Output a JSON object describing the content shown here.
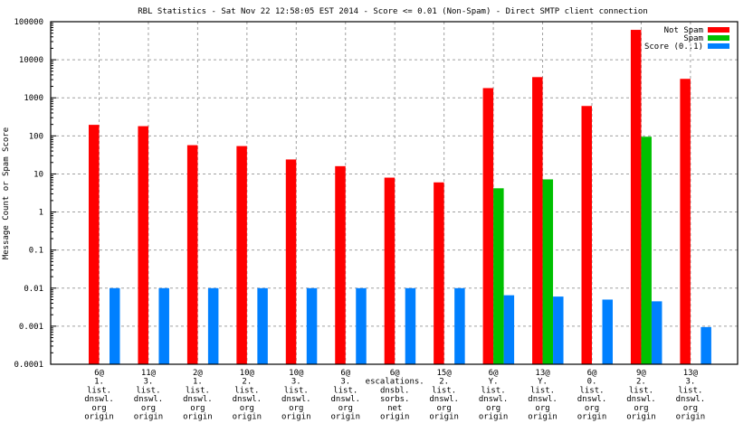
{
  "chart_data": {
    "type": "bar",
    "title": "RBL Statistics - Sat Nov 22 12:58:05 EST 2014 - Score <= 0.01 (Non-Spam) - Direct SMTP client connection",
    "xlabel": "",
    "ylabel": "Message Count or Spam Score",
    "yscale": "log",
    "ylim": [
      0.0001,
      100000
    ],
    "yticks": [
      "0.0001",
      "0.001",
      "0.01",
      "0.1",
      "1",
      "10",
      "100",
      "1000",
      "10000",
      "100000"
    ],
    "grid": true,
    "legend_position": "top-right",
    "categories": [
      [
        "6@",
        "1.",
        "list.",
        "dnswl.",
        "org",
        "origin"
      ],
      [
        "11@",
        "3.",
        "list.",
        "dnswl.",
        "org",
        "origin"
      ],
      [
        "2@",
        "1.",
        "list.",
        "dnswl.",
        "org",
        "origin"
      ],
      [
        "10@",
        "2.",
        "list.",
        "dnswl.",
        "org",
        "origin"
      ],
      [
        "10@",
        "3.",
        "list.",
        "dnswl.",
        "org",
        "origin"
      ],
      [
        "6@",
        "3.",
        "list.",
        "dnswl.",
        "org",
        "origin"
      ],
      [
        "6@",
        "escalations.",
        "dnsbl.",
        "sorbs.",
        "net",
        "origin"
      ],
      [
        "15@",
        "2.",
        "list.",
        "dnswl.",
        "org",
        "origin"
      ],
      [
        "6@",
        "Y.",
        "list.",
        "dnswl.",
        "org",
        "origin"
      ],
      [
        "13@",
        "Y.",
        "list.",
        "dnswl.",
        "org",
        "origin"
      ],
      [
        "6@",
        "0.",
        "list.",
        "dnswl.",
        "org",
        "origin"
      ],
      [
        "9@",
        "2.",
        "list.",
        "dnswl.",
        "org",
        "origin"
      ],
      [
        "13@",
        "3.",
        "list.",
        "dnswl.",
        "org",
        "origin"
      ]
    ],
    "series": [
      {
        "name": "Not Spam",
        "color": "#ff0000",
        "values": [
          195,
          180,
          57,
          54,
          24,
          16,
          8,
          6,
          1800,
          3500,
          610,
          61000,
          3150
        ]
      },
      {
        "name": "Spam",
        "color": "#00c000",
        "values": [
          null,
          null,
          null,
          null,
          null,
          null,
          null,
          null,
          4.2,
          7.2,
          null,
          95,
          null
        ]
      },
      {
        "name": "Score (0..1)",
        "color": "#0080ff",
        "values": [
          0.01,
          0.01,
          0.01,
          0.01,
          0.01,
          0.01,
          0.01,
          0.01,
          0.0065,
          0.006,
          0.005,
          0.0045,
          0.00095
        ]
      }
    ]
  }
}
